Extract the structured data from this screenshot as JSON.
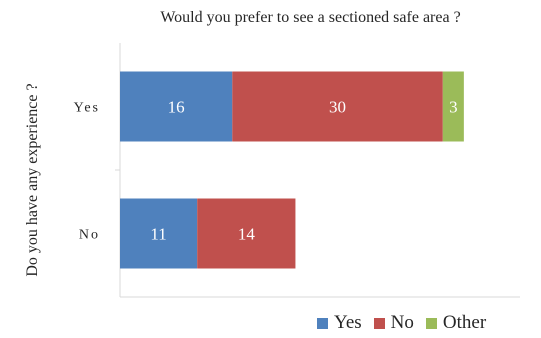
{
  "chart_data": {
    "type": "bar",
    "orientation": "horizontal",
    "stacked": true,
    "title": "Would you prefer to see a sectioned safe area ?",
    "ylabel": "Do you have any experience ?",
    "xlabel": "",
    "categories": [
      "Yes",
      "No"
    ],
    "series": [
      {
        "name": "Yes",
        "values": [
          16,
          11
        ],
        "color": "#4F81BD"
      },
      {
        "name": "No",
        "values": [
          30,
          14
        ],
        "color": "#C0504D"
      },
      {
        "name": "Other",
        "values": [
          3,
          0
        ],
        "color": "#9BBB59"
      }
    ],
    "data_labels": true,
    "xlim": [
      0,
      57
    ],
    "grid": false,
    "legend_position": "bottom-right"
  }
}
